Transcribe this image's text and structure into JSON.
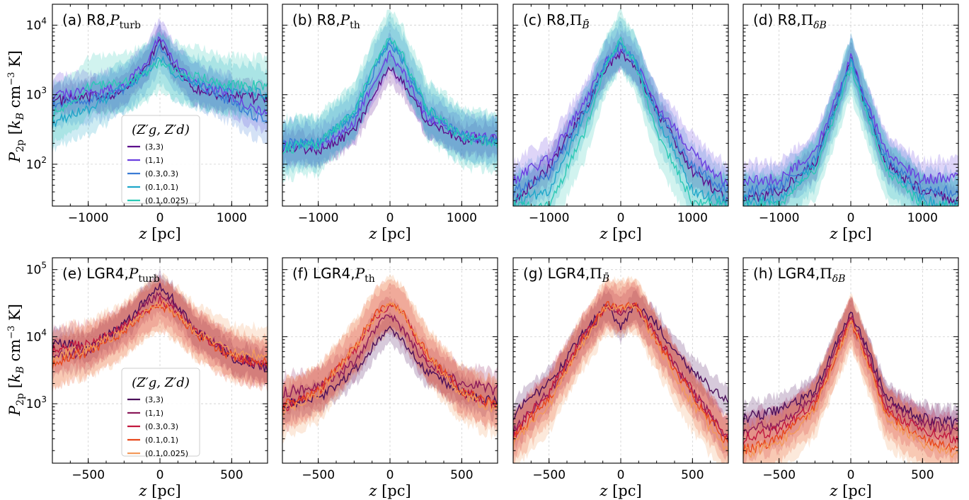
{
  "colors": {
    "top": [
      "#5c0f8b",
      "#6a3fe0",
      "#3a7bd5",
      "#1fa7c9",
      "#2cc9b5"
    ],
    "bottom": [
      "#4b0f5a",
      "#8b1a5a",
      "#c2183e",
      "#e8481c",
      "#f39a5c"
    ]
  },
  "figure": {
    "ylabel_top": "P_2p [k_B cm^-3 K]",
    "ylabel_bottom": "P_2p [k_B cm^-3 K]",
    "xlabel": "z [pc]"
  },
  "legend_top": {
    "title": "(Z'_g, Z'_d)",
    "entries": [
      "(3,3)",
      "(1,1)",
      "(0.3,0.3)",
      "(0.1,0.1)",
      "(0.1,0.025)"
    ]
  },
  "legend_bottom": {
    "title": "(Z'_g, Z'_d)",
    "entries": [
      "(3,3)",
      "(1,1)",
      "(0.3,0.3)",
      "(0.1,0.1)",
      "(0.1,0.025)"
    ]
  },
  "chart_data": [
    {
      "type": "line",
      "title": "(a) R8,P_turb",
      "xlim": [
        -1500,
        1500
      ],
      "ylim": [
        25,
        20000
      ],
      "yscale": "log",
      "xlabel": "",
      "ylabel": "P_2p [k_B cm^-3 K]",
      "xticks": [
        "−1000",
        "0",
        "1000"
      ],
      "yticks": [
        "10^2",
        "10^3",
        "10^4"
      ],
      "x": [
        -1500,
        -1000,
        -500,
        -200,
        0,
        200,
        500,
        1000,
        1500
      ],
      "series": [
        {
          "name": "(3,3)",
          "values": [
            800,
            900,
            1100,
            2500,
            6000,
            2500,
            1200,
            900,
            900
          ]
        },
        {
          "name": "(1,1)",
          "values": [
            1000,
            1100,
            1300,
            3000,
            7000,
            3000,
            1400,
            1000,
            500
          ]
        },
        {
          "name": "(0.3,0.3)",
          "values": [
            700,
            800,
            1200,
            2200,
            5000,
            2500,
            1400,
            800,
            400
          ]
        },
        {
          "name": "(0.1,0.1)",
          "values": [
            400,
            600,
            1300,
            2000,
            3500,
            2000,
            1500,
            1200,
            1000
          ]
        },
        {
          "name": "(0.1,0.025)",
          "values": [
            500,
            1300,
            1500,
            2000,
            3000,
            2200,
            1800,
            1400,
            1300
          ]
        }
      ]
    },
    {
      "type": "line",
      "title": "(b) R8,P_th",
      "xlim": [
        -1500,
        1500
      ],
      "ylim": [
        25,
        20000
      ],
      "yscale": "log",
      "xlabel": "",
      "ylabel": "",
      "xticks": [
        "−1000",
        "0",
        "1000"
      ],
      "yticks": [],
      "x": [
        -1500,
        -1000,
        -500,
        -200,
        0,
        200,
        500,
        1000,
        1500
      ],
      "series": [
        {
          "name": "(3,3)",
          "values": [
            180,
            160,
            300,
            1100,
            2400,
            1400,
            450,
            230,
            230
          ]
        },
        {
          "name": "(1,1)",
          "values": [
            200,
            180,
            400,
            1800,
            4000,
            2000,
            500,
            250,
            240
          ]
        },
        {
          "name": "(0.3,0.3)",
          "values": [
            200,
            200,
            500,
            2500,
            5500,
            2800,
            600,
            260,
            220
          ]
        },
        {
          "name": "(0.1,0.1)",
          "values": [
            190,
            200,
            550,
            2800,
            6000,
            3000,
            650,
            250,
            220
          ]
        },
        {
          "name": "(0.1,0.025)",
          "values": [
            170,
            190,
            550,
            3000,
            6500,
            3300,
            650,
            240,
            200
          ]
        }
      ]
    },
    {
      "type": "line",
      "title": "(c) R8,Π_B̄",
      "xlim": [
        -1500,
        1500
      ],
      "ylim": [
        25,
        20000
      ],
      "yscale": "log",
      "xlabel": "",
      "ylabel": "",
      "xticks": [
        "−1000",
        "0",
        "1000"
      ],
      "yticks": [],
      "x": [
        -1500,
        -1000,
        -500,
        -200,
        0,
        200,
        500,
        1000,
        1500
      ],
      "series": [
        {
          "name": "(3,3)",
          "values": [
            30,
            90,
            600,
            2500,
            4000,
            2500,
            600,
            80,
            30
          ]
        },
        {
          "name": "(1,1)",
          "values": [
            60,
            120,
            800,
            3000,
            4500,
            3000,
            700,
            150,
            50
          ]
        },
        {
          "name": "(0.3,0.3)",
          "values": [
            40,
            70,
            600,
            3000,
            5000,
            3000,
            600,
            90,
            40
          ]
        },
        {
          "name": "(0.1,0.1)",
          "values": [
            30,
            40,
            500,
            3000,
            5500,
            3000,
            500,
            40,
            30
          ]
        },
        {
          "name": "(0.1,0.025)",
          "values": [
            25,
            25,
            300,
            2800,
            6000,
            2800,
            300,
            30,
            25
          ]
        }
      ]
    },
    {
      "type": "line",
      "title": "(d) R8,Π_δB",
      "xlim": [
        -1500,
        1500
      ],
      "ylim": [
        25,
        20000
      ],
      "yscale": "log",
      "xlabel": "",
      "ylabel": "",
      "xticks": [
        "−1000",
        "0",
        "1000"
      ],
      "yticks": [],
      "x": [
        -1500,
        -1000,
        -500,
        -200,
        0,
        200,
        500,
        1000,
        1500
      ],
      "series": [
        {
          "name": "(3,3)",
          "values": [
            30,
            40,
            100,
            700,
            3500,
            700,
            100,
            40,
            30
          ]
        },
        {
          "name": "(1,1)",
          "values": [
            60,
            60,
            150,
            900,
            3500,
            900,
            150,
            60,
            70
          ]
        },
        {
          "name": "(0.3,0.3)",
          "values": [
            40,
            45,
            120,
            800,
            3200,
            800,
            120,
            40,
            40
          ]
        },
        {
          "name": "(0.1,0.1)",
          "values": [
            30,
            30,
            100,
            700,
            3000,
            700,
            100,
            30,
            25
          ]
        },
        {
          "name": "(0.1,0.025)",
          "values": [
            25,
            25,
            80,
            600,
            2500,
            600,
            80,
            25,
            25
          ]
        }
      ]
    },
    {
      "type": "line",
      "title": "(e) LGR4,P_turb",
      "xlim": [
        -750,
        750
      ],
      "ylim": [
        130,
        150000
      ],
      "yscale": "log",
      "xlabel": "z [pc]",
      "ylabel": "P_2p [k_B cm^-3 K]",
      "xticks": [
        "−500",
        "0",
        "500"
      ],
      "yticks": [
        "10^3",
        "10^4",
        "10^5"
      ],
      "x": [
        -750,
        -500,
        -250,
        -100,
        0,
        100,
        250,
        500,
        750
      ],
      "series": [
        {
          "name": "(3,3)",
          "values": [
            8000,
            7000,
            15000,
            35000,
            55000,
            35000,
            12000,
            5000,
            3500
          ]
        },
        {
          "name": "(1,1)",
          "values": [
            5000,
            6000,
            14000,
            30000,
            45000,
            30000,
            12000,
            5500,
            3500
          ]
        },
        {
          "name": "(0.3,0.3)",
          "values": [
            6000,
            8000,
            14000,
            25000,
            35000,
            25000,
            12000,
            5000,
            4000
          ]
        },
        {
          "name": "(0.1,0.1)",
          "values": [
            4000,
            6000,
            12000,
            22000,
            30000,
            22000,
            11000,
            5000,
            4000
          ]
        },
        {
          "name": "(0.1,0.025)",
          "values": [
            5000,
            6500,
            12000,
            24000,
            32000,
            24000,
            12000,
            6000,
            5000
          ]
        }
      ]
    },
    {
      "type": "line",
      "title": "(f) LGR4,P_th",
      "xlim": [
        -750,
        750
      ],
      "ylim": [
        130,
        150000
      ],
      "yscale": "log",
      "xlabel": "z [pc]",
      "ylabel": "",
      "xticks": [
        "−500",
        "0",
        "500"
      ],
      "yticks": [],
      "x": [
        -750,
        -500,
        -250,
        -100,
        0,
        100,
        250,
        500,
        750
      ],
      "series": [
        {
          "name": "(3,3)",
          "values": [
            1000,
            1200,
            3000,
            8000,
            14000,
            8000,
            3000,
            1500,
            1000
          ]
        },
        {
          "name": "(1,1)",
          "values": [
            1500,
            1800,
            4000,
            13000,
            22000,
            12000,
            4000,
            2000,
            1600
          ]
        },
        {
          "name": "(0.3,0.3)",
          "values": [
            900,
            1500,
            6000,
            20000,
            30000,
            20000,
            5000,
            1500,
            900
          ]
        },
        {
          "name": "(0.1,0.1)",
          "values": [
            900,
            1500,
            7000,
            22000,
            33000,
            22000,
            6000,
            1500,
            900
          ]
        },
        {
          "name": "(0.1,0.025)",
          "values": [
            800,
            1400,
            6500,
            20000,
            32000,
            20000,
            5500,
            1400,
            800
          ]
        }
      ]
    },
    {
      "type": "line",
      "title": "(g) LGR4,Π_B̄",
      "xlim": [
        -750,
        750
      ],
      "ylim": [
        130,
        150000
      ],
      "yscale": "log",
      "xlabel": "z [pc]",
      "ylabel": "",
      "xticks": [
        "−500",
        "0",
        "500"
      ],
      "yticks": [],
      "x": [
        -750,
        -500,
        -250,
        -100,
        0,
        100,
        250,
        500,
        750
      ],
      "series": [
        {
          "name": "(3,3)",
          "values": [
            700,
            2000,
            12000,
            30000,
            14000,
            30000,
            15000,
            3000,
            1000
          ]
        },
        {
          "name": "(1,1)",
          "values": [
            400,
            1500,
            10000,
            28000,
            20000,
            30000,
            10000,
            1500,
            300
          ]
        },
        {
          "name": "(0.3,0.3)",
          "values": [
            350,
            1500,
            11000,
            30000,
            25000,
            32000,
            10000,
            1500,
            300
          ]
        },
        {
          "name": "(0.1,0.1)",
          "values": [
            300,
            1200,
            10000,
            30000,
            28000,
            30000,
            9000,
            1200,
            250
          ]
        },
        {
          "name": "(0.1,0.025)",
          "values": [
            250,
            1000,
            9000,
            28000,
            27000,
            28000,
            8000,
            1000,
            200
          ]
        }
      ]
    },
    {
      "type": "line",
      "title": "(h) LGR4,Π_δB",
      "xlim": [
        -750,
        750
      ],
      "ylim": [
        130,
        150000
      ],
      "yscale": "log",
      "xlabel": "z [pc]",
      "ylabel": "",
      "xticks": [
        "−500",
        "0",
        "500"
      ],
      "yticks": [],
      "x": [
        -750,
        -500,
        -250,
        -100,
        0,
        100,
        250,
        500,
        750
      ],
      "series": [
        {
          "name": "(3,3)",
          "values": [
            600,
            800,
            1500,
            8000,
            22000,
            8000,
            1200,
            600,
            500
          ]
        },
        {
          "name": "(1,1)",
          "values": [
            400,
            500,
            1200,
            7000,
            20000,
            7000,
            1000,
            500,
            400
          ]
        },
        {
          "name": "(0.3,0.3)",
          "values": [
            300,
            400,
            1000,
            6000,
            18000,
            6000,
            800,
            400,
            300
          ]
        },
        {
          "name": "(0.1,0.1)",
          "values": [
            200,
            300,
            900,
            5500,
            17000,
            5500,
            700,
            300,
            200
          ]
        },
        {
          "name": "(0.1,0.025)",
          "values": [
            180,
            250,
            800,
            5000,
            16000,
            5000,
            600,
            250,
            180
          ]
        }
      ]
    }
  ]
}
